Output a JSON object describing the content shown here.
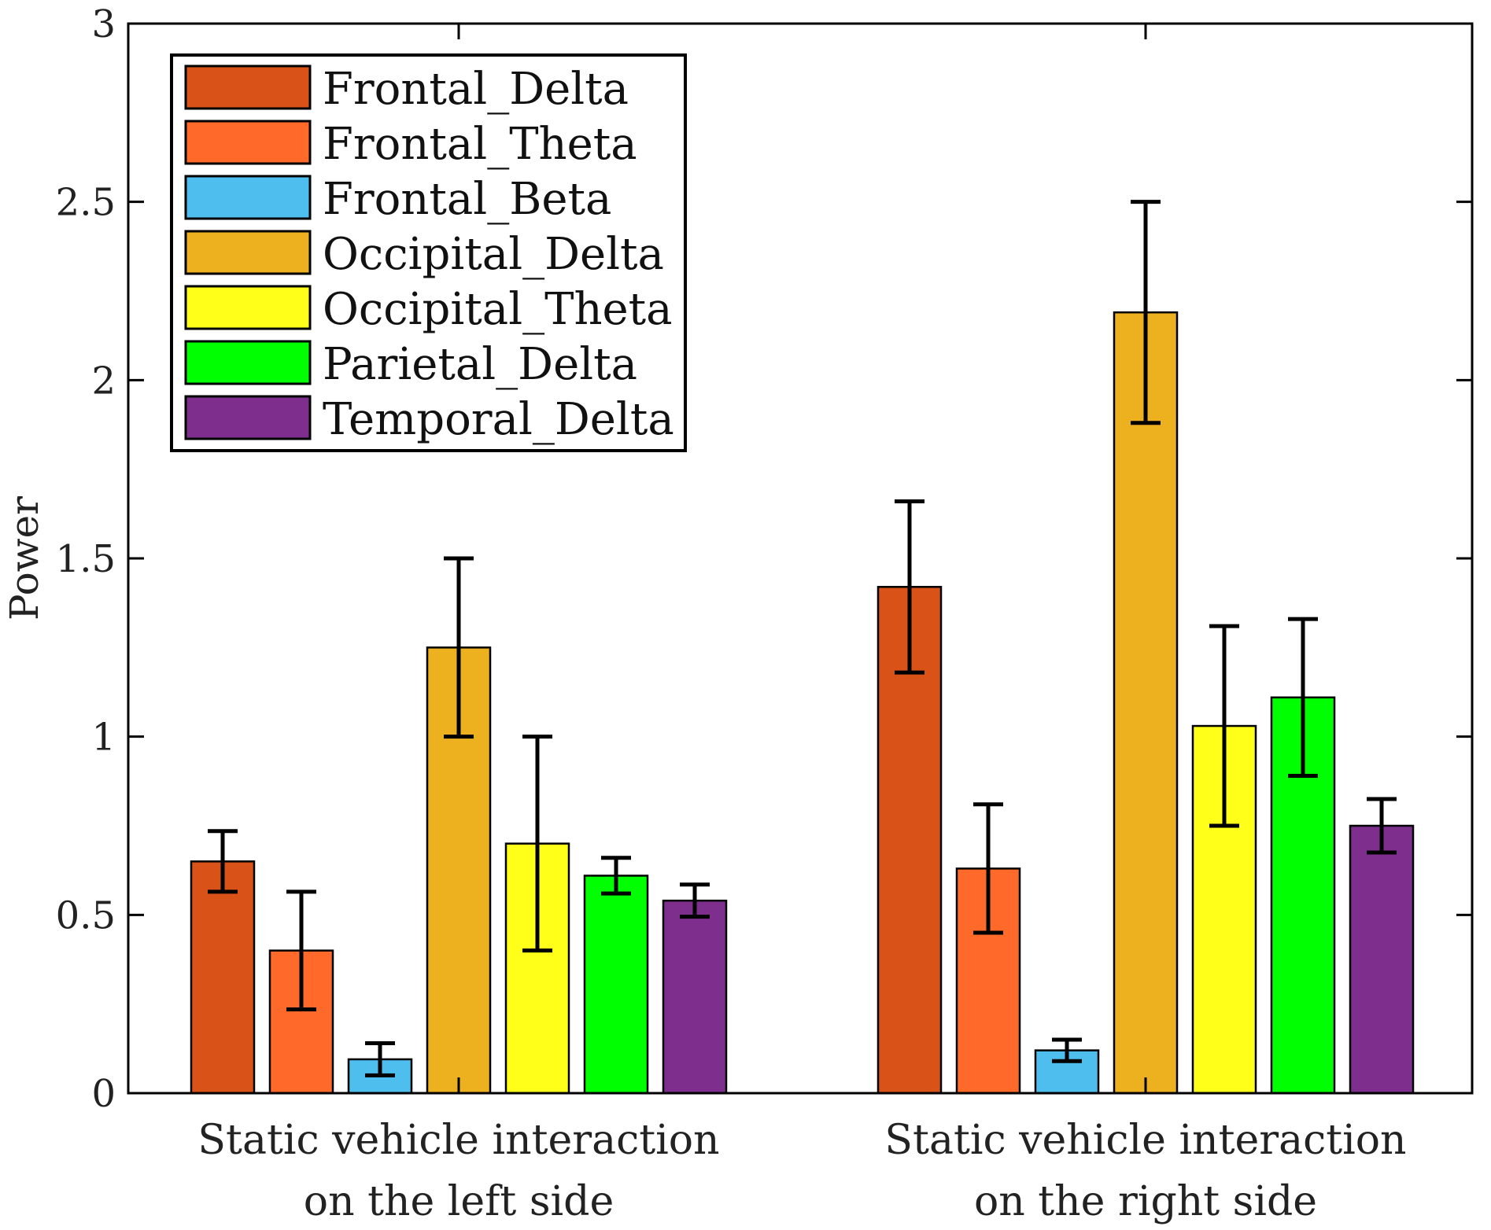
{
  "chart_data": {
    "type": "bar",
    "title": "",
    "xlabel": "",
    "ylabel": "Power",
    "ylim": [
      0,
      3
    ],
    "yticks": [
      0,
      0.5,
      1,
      1.5,
      2,
      2.5,
      3
    ],
    "ytick_labels": [
      "0",
      "0.5",
      "1",
      "1.5",
      "2",
      "2.5",
      "3"
    ],
    "categories": [
      [
        "Static vehicle interaction",
        "on the left side"
      ],
      [
        "Static vehicle interaction",
        "on the right side"
      ]
    ],
    "legend_position": "top-left",
    "grid": false,
    "series": [
      {
        "name": "Frontal_Delta",
        "color": "#D95319",
        "values": [
          0.65,
          1.42
        ],
        "errors": [
          0.085,
          0.24
        ]
      },
      {
        "name": "Frontal_Theta",
        "color": "#FF6A2A",
        "values": [
          0.4,
          0.63
        ],
        "errors": [
          0.165,
          0.18
        ]
      },
      {
        "name": "Frontal_Beta",
        "color": "#4DBEEE",
        "values": [
          0.095,
          0.12
        ],
        "errors": [
          0.045,
          0.03
        ]
      },
      {
        "name": "Occipital_Delta",
        "color": "#EDB120",
        "values": [
          1.25,
          2.19
        ],
        "errors": [
          0.25,
          0.31
        ]
      },
      {
        "name": "Occipital_Theta",
        "color": "#FFFF1A",
        "values": [
          0.7,
          1.03
        ],
        "errors": [
          0.3,
          0.28
        ]
      },
      {
        "name": "Parietal_Delta",
        "color": "#00FF00",
        "values": [
          0.61,
          1.11
        ],
        "errors": [
          0.05,
          0.22
        ]
      },
      {
        "name": "Temporal_Delta",
        "color": "#7E2F8E",
        "values": [
          0.54,
          0.75
        ],
        "errors": [
          0.045,
          0.075
        ]
      }
    ]
  }
}
